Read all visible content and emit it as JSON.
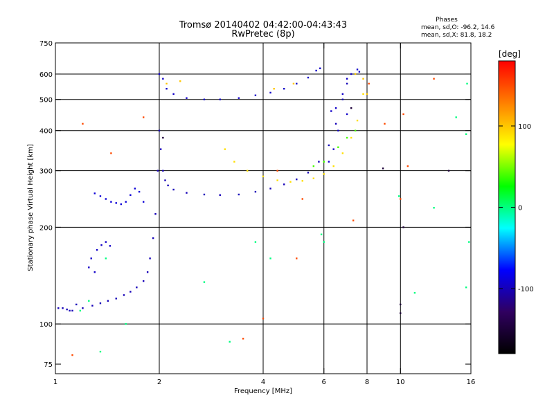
{
  "chart_data": {
    "type": "scatter",
    "title": "Tromsø 20140402 04:42:00-04:43:43",
    "subtitle": "RwPretec (8p)",
    "xlabel": "Frequency [MHz]",
    "ylabel": "Stationary phase Virtual Height [km]",
    "x_scale": "log",
    "y_scale": "log",
    "xlim": [
      1,
      16
    ],
    "ylim": [
      70,
      750
    ],
    "x_ticks": [
      1,
      2,
      4,
      6,
      8,
      10,
      16
    ],
    "y_ticks": [
      75,
      100,
      200,
      300,
      400,
      500,
      600,
      750
    ],
    "x_gridlines": [
      2,
      4,
      6,
      8,
      10
    ],
    "y_gridlines": [
      100,
      200,
      300,
      400,
      500,
      600
    ],
    "grid": true,
    "stats": {
      "heading": "Phases",
      "line1": "mean, sd,O: -96.2, 14.6",
      "line2": "mean, sd,X:  81.8, 18.2"
    },
    "colorbar": {
      "label": "[deg]",
      "range": [
        -180,
        180
      ],
      "ticks": [
        100,
        0,
        -100
      ],
      "stops": [
        "#ff0000",
        "#ff7f00",
        "#ffff00",
        "#00ff00",
        "#00ffff",
        "#0000ff",
        "#300060",
        "#000000"
      ]
    },
    "series": [
      {
        "phase": -100,
        "points": [
          [
            1.02,
            112
          ],
          [
            1.05,
            112
          ],
          [
            1.08,
            111
          ],
          [
            1.1,
            110
          ],
          [
            1.12,
            110
          ],
          [
            1.15,
            115
          ],
          [
            1.2,
            112
          ],
          [
            1.28,
            114
          ],
          [
            1.35,
            116
          ],
          [
            1.42,
            118
          ],
          [
            1.5,
            120
          ],
          [
            1.58,
            123
          ],
          [
            1.65,
            126
          ],
          [
            1.72,
            130
          ],
          [
            1.8,
            136
          ],
          [
            1.85,
            145
          ],
          [
            1.88,
            160
          ],
          [
            1.92,
            185
          ],
          [
            1.95,
            220
          ],
          [
            1.98,
            300
          ],
          [
            2.0,
            400
          ],
          [
            2.02,
            350
          ],
          [
            2.05,
            300
          ],
          [
            2.08,
            280
          ],
          [
            2.12,
            270
          ],
          [
            2.2,
            262
          ],
          [
            2.4,
            256
          ],
          [
            2.7,
            253
          ],
          [
            3.0,
            252
          ],
          [
            3.4,
            253
          ],
          [
            3.8,
            258
          ],
          [
            4.2,
            264
          ],
          [
            4.6,
            272
          ],
          [
            5.0,
            282
          ],
          [
            5.4,
            296
          ],
          [
            5.8,
            320
          ],
          [
            6.2,
            360
          ],
          [
            6.5,
            420
          ],
          [
            6.8,
            500
          ],
          [
            7.0,
            560
          ]
        ]
      },
      {
        "phase": -90,
        "points": [
          [
            1.3,
            255
          ],
          [
            1.35,
            250
          ],
          [
            1.4,
            245
          ],
          [
            1.45,
            240
          ],
          [
            1.5,
            238
          ],
          [
            1.55,
            236
          ],
          [
            1.6,
            240
          ],
          [
            1.65,
            252
          ],
          [
            1.7,
            264
          ],
          [
            1.75,
            258
          ],
          [
            1.8,
            240
          ]
        ]
      },
      {
        "phase": -95,
        "points": [
          [
            1.32,
            170
          ],
          [
            1.36,
            176
          ],
          [
            1.4,
            180
          ],
          [
            1.44,
            175
          ],
          [
            1.25,
            150
          ],
          [
            1.27,
            160
          ],
          [
            1.3,
            145
          ]
        ]
      },
      {
        "phase": -95,
        "points": [
          [
            2.0,
            600
          ],
          [
            2.05,
            580
          ],
          [
            2.1,
            540
          ],
          [
            2.2,
            520
          ],
          [
            2.4,
            505
          ],
          [
            2.7,
            500
          ],
          [
            3.0,
            500
          ],
          [
            3.4,
            505
          ],
          [
            3.8,
            515
          ],
          [
            4.2,
            525
          ],
          [
            4.6,
            540
          ],
          [
            5.0,
            560
          ],
          [
            5.4,
            585
          ],
          [
            5.7,
            615
          ],
          [
            5.85,
            625
          ]
        ]
      },
      {
        "phase": -95,
        "points": [
          [
            6.3,
            460
          ],
          [
            6.5,
            470
          ],
          [
            6.8,
            520
          ],
          [
            7.0,
            580
          ],
          [
            7.2,
            600
          ],
          [
            7.5,
            620
          ],
          [
            7.6,
            610
          ],
          [
            7.0,
            450
          ],
          [
            6.6,
            400
          ],
          [
            6.4,
            350
          ],
          [
            6.2,
            320
          ]
        ]
      },
      {
        "phase": 90,
        "points": [
          [
            3.1,
            350
          ],
          [
            3.3,
            320
          ],
          [
            3.6,
            300
          ],
          [
            4.0,
            288
          ],
          [
            4.4,
            280
          ],
          [
            4.8,
            277
          ],
          [
            5.2,
            279
          ],
          [
            5.6,
            284
          ],
          [
            6.0,
            293
          ],
          [
            6.4,
            310
          ],
          [
            6.8,
            340
          ],
          [
            7.2,
            380
          ],
          [
            7.5,
            430
          ],
          [
            7.8,
            520
          ]
        ]
      },
      {
        "phase": 100,
        "points": [
          [
            2.1,
            560
          ],
          [
            2.3,
            570
          ],
          [
            4.3,
            540
          ],
          [
            4.9,
            560
          ],
          [
            7.4,
            600
          ],
          [
            7.8,
            580
          ],
          [
            8.0,
            520
          ]
        ]
      },
      {
        "phase": 40,
        "points": [
          [
            5.6,
            310
          ],
          [
            6.0,
            320
          ],
          [
            6.6,
            355
          ],
          [
            7.0,
            380
          ],
          [
            7.4,
            400
          ]
        ]
      },
      {
        "phase": -150,
        "points": [
          [
            2.05,
            380
          ],
          [
            7.2,
            470
          ],
          [
            8.9,
            305
          ],
          [
            10.0,
            115
          ],
          [
            10.0,
            108
          ],
          [
            13.8,
            300
          ],
          [
            10.2,
            200
          ]
        ]
      },
      {
        "phase": 0,
        "points": [
          [
            1.18,
            110
          ],
          [
            1.25,
            118
          ],
          [
            1.35,
            82
          ],
          [
            1.4,
            160
          ],
          [
            1.6,
            100
          ],
          [
            2.7,
            135
          ],
          [
            3.2,
            88
          ],
          [
            3.8,
            180
          ],
          [
            4.2,
            160
          ],
          [
            5.9,
            190
          ],
          [
            11.0,
            125
          ],
          [
            12.5,
            230
          ],
          [
            15.5,
            390
          ],
          [
            15.5,
            130
          ],
          [
            15.8,
            180
          ],
          [
            14.5,
            440
          ],
          [
            9.9,
            250
          ],
          [
            6.0,
            180
          ],
          [
            15.6,
            560
          ]
        ]
      },
      {
        "phase": 150,
        "points": [
          [
            1.12,
            80
          ],
          [
            1.2,
            420
          ],
          [
            4.0,
            104
          ],
          [
            4.4,
            300
          ],
          [
            5.0,
            160
          ],
          [
            7.3,
            210
          ],
          [
            10.2,
            450
          ],
          [
            10.0,
            245
          ],
          [
            10.5,
            310
          ],
          [
            12.5,
            580
          ],
          [
            8.1,
            560
          ],
          [
            9.0,
            420
          ],
          [
            5.2,
            245
          ],
          [
            3.5,
            90
          ],
          [
            1.45,
            340
          ],
          [
            1.8,
            440
          ]
        ]
      }
    ]
  }
}
